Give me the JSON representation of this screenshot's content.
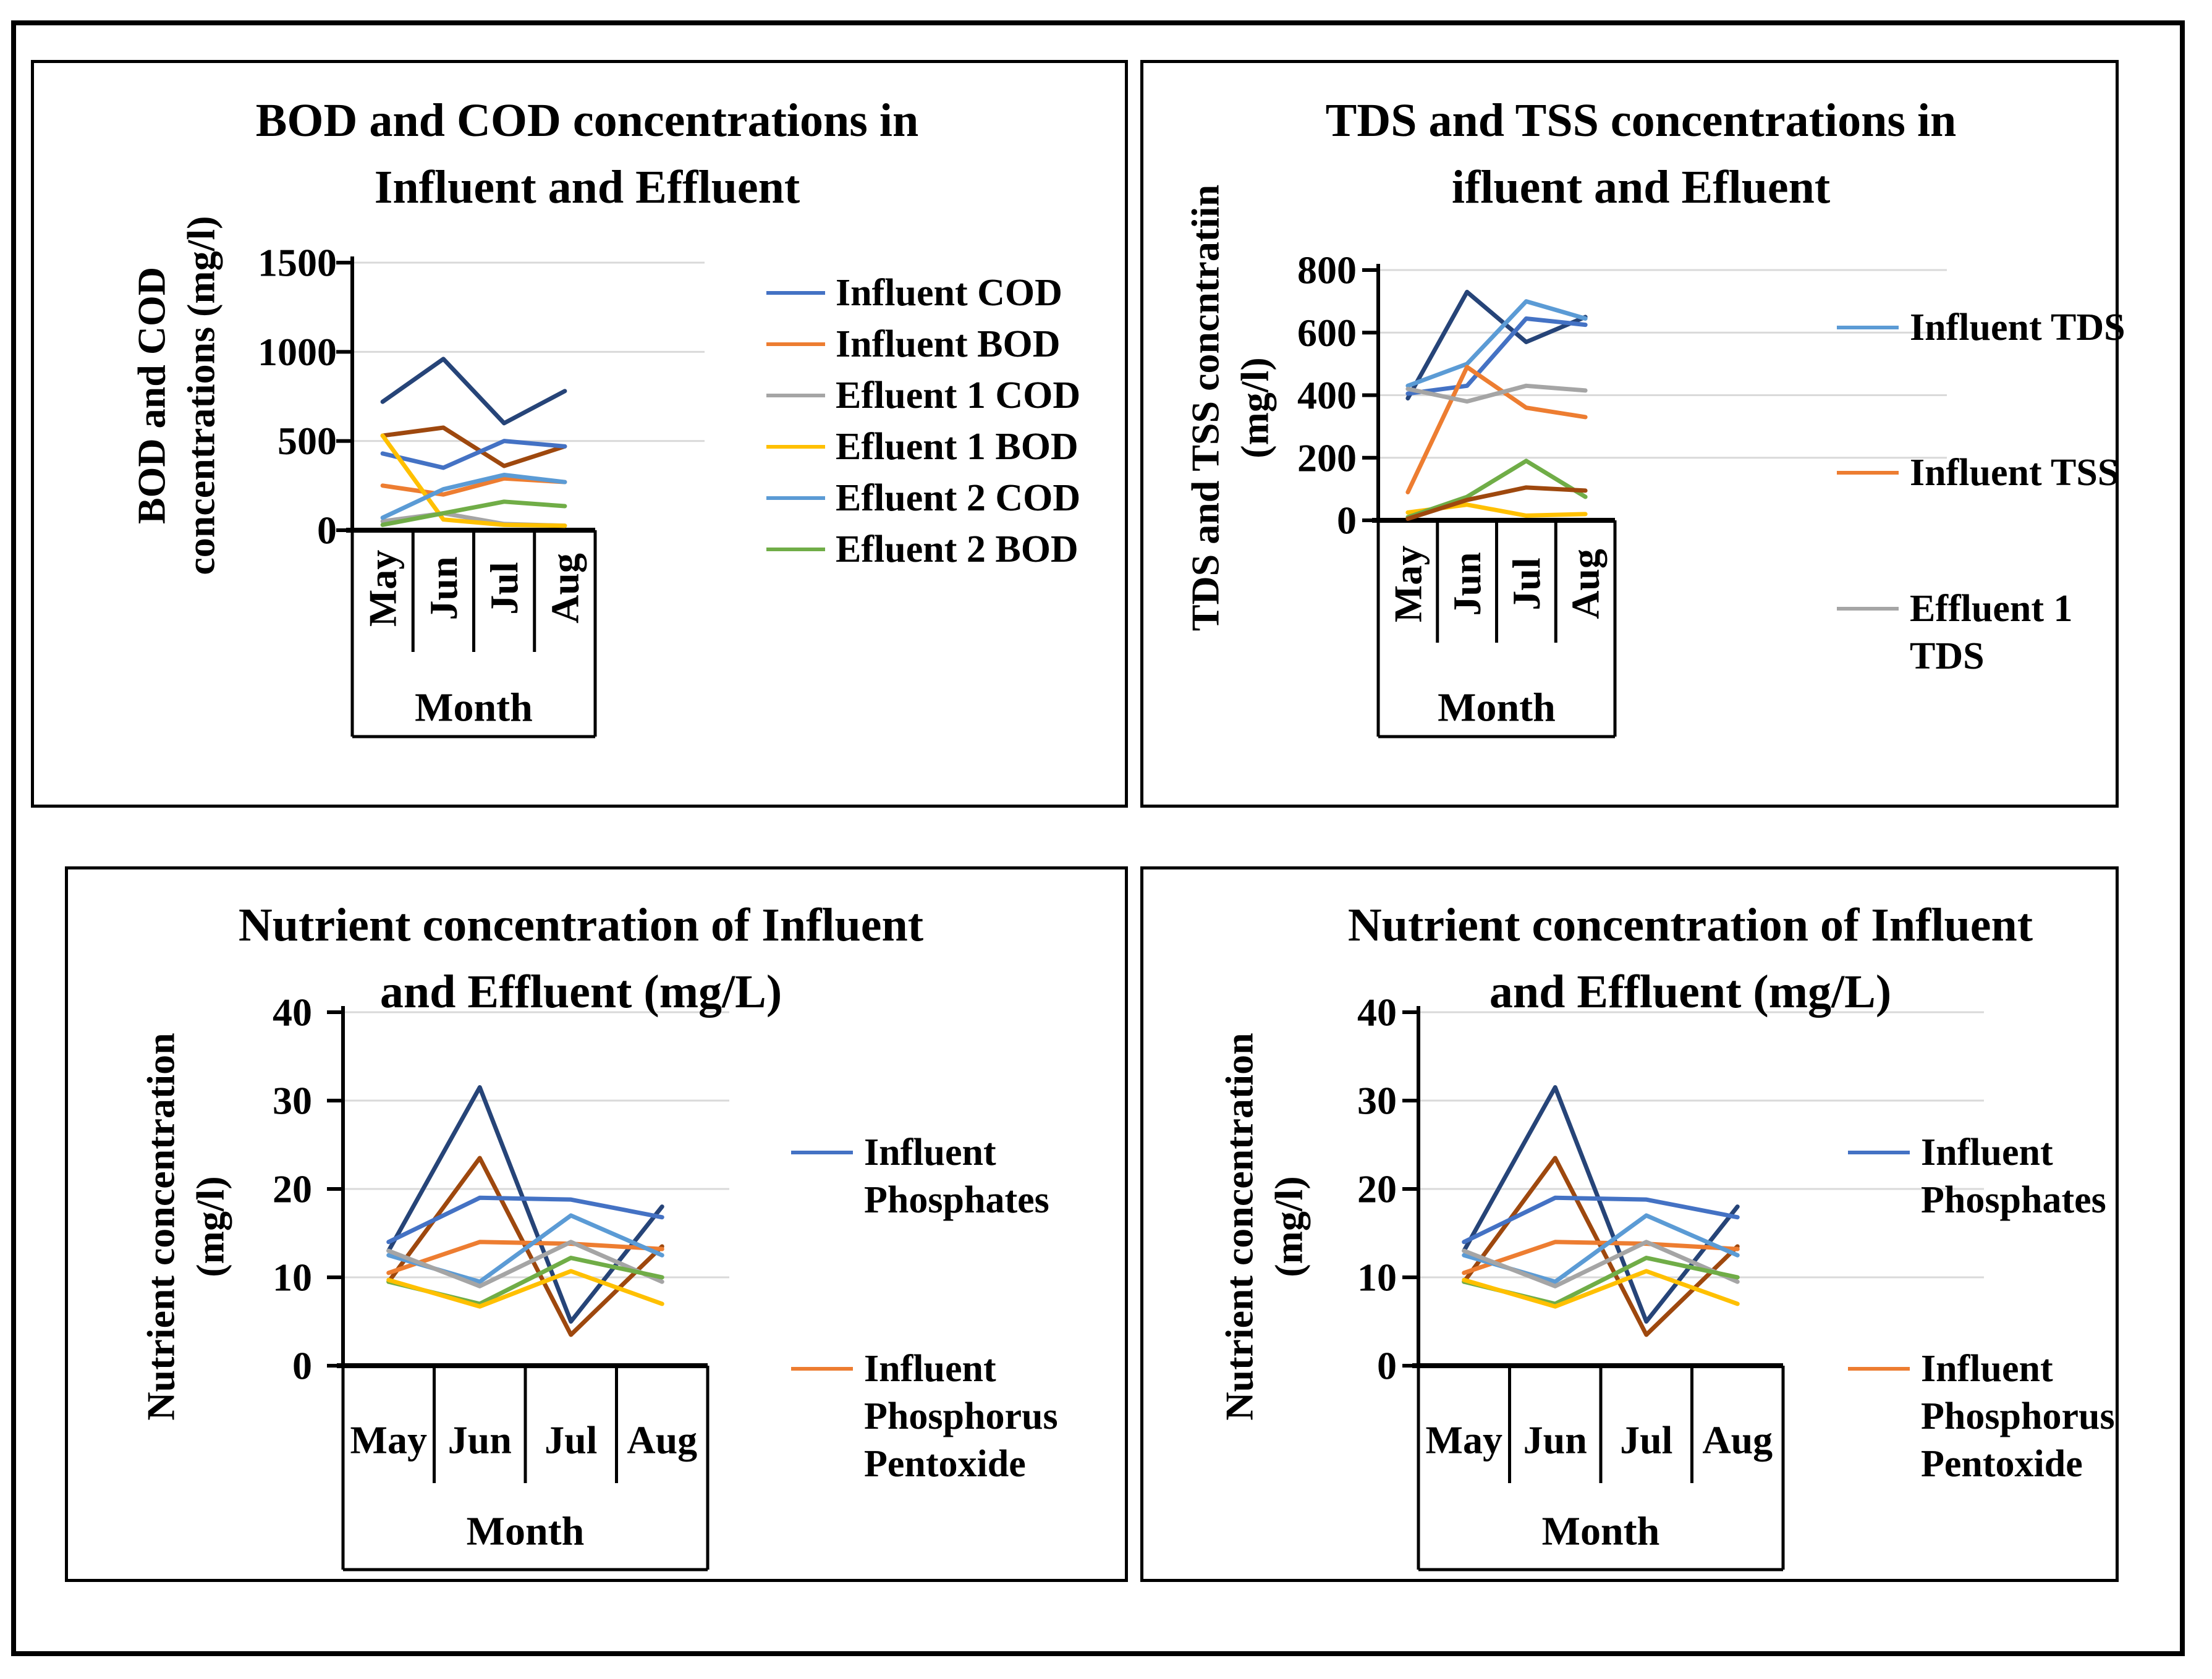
{
  "figure": {
    "background": "#ffffff",
    "border_color": "#000000",
    "gridline_color": "#D9D9D9"
  },
  "chart_data": [
    {
      "id": "bod-cod",
      "type": "line",
      "title_lines": [
        "BOD and COD concentrations in",
        "Influent and Effluent"
      ],
      "title": "BOD and COD concentrations in Influent and Effluent",
      "ylabel_lines": [
        "BOD and COD",
        "concentrations (mg/l)"
      ],
      "ylabel": "BOD and COD concentrations (mg/l)",
      "xlabel": "Month",
      "categories": [
        "May",
        "Jun",
        "Jul",
        "Aug"
      ],
      "ylim": [
        0,
        1500
      ],
      "yticks": [
        0,
        500,
        1000,
        1500
      ],
      "grid": true,
      "x_labels_rotated": true,
      "legend_position": "right",
      "legend": [
        {
          "label": "Influent COD",
          "lines": [
            "Influent COD"
          ],
          "color": "#4472C4"
        },
        {
          "label": "Influent BOD",
          "lines": [
            "Influent BOD"
          ],
          "color": "#ED7D31"
        },
        {
          "label": "Efluent 1 COD",
          "lines": [
            "Efluent 1 COD"
          ],
          "color": "#A5A5A5"
        },
        {
          "label": "Efluent 1 BOD",
          "lines": [
            "Efluent 1 BOD"
          ],
          "color": "#FFC000"
        },
        {
          "label": "Efluent 2 COD",
          "lines": [
            "Efluent 2 COD"
          ],
          "color": "#5B9BD5"
        },
        {
          "label": "Efluent 2 BOD",
          "lines": [
            "Efluent 2 BOD"
          ],
          "color": "#70AD47"
        }
      ],
      "series": [
        {
          "name": "unlabeled series (dark blue)",
          "color": "#264478",
          "in_legend": false,
          "values": [
            720,
            960,
            600,
            780
          ]
        },
        {
          "name": "unlabeled series (dark brown)",
          "color": "#9E480E",
          "in_legend": false,
          "values": [
            530,
            575,
            360,
            470
          ]
        },
        {
          "name": "Influent COD",
          "color": "#4472C4",
          "in_legend": true,
          "values": [
            430,
            350,
            500,
            470
          ]
        },
        {
          "name": "Influent BOD",
          "color": "#ED7D31",
          "in_legend": true,
          "values": [
            250,
            200,
            290,
            270
          ]
        },
        {
          "name": "Efluent 1 COD",
          "color": "#A5A5A5",
          "in_legend": true,
          "values": [
            50,
            95,
            35,
            25
          ]
        },
        {
          "name": "Efluent 1 BOD",
          "color": "#FFC000",
          "in_legend": true,
          "values": [
            530,
            60,
            30,
            25
          ]
        },
        {
          "name": "Efluent 2 COD",
          "color": "#5B9BD5",
          "in_legend": true,
          "values": [
            70,
            230,
            310,
            270
          ]
        },
        {
          "name": "Efluent 2 BOD",
          "color": "#70AD47",
          "in_legend": true,
          "values": [
            30,
            95,
            160,
            135
          ]
        }
      ]
    },
    {
      "id": "tds-tss",
      "type": "line",
      "title_lines": [
        "TDS and TSS concentrations in",
        "ifluent and Efluent"
      ],
      "title": "TDS and TSS concentrations in ifluent and Efluent",
      "ylabel_lines": [
        "TDS and TSS concntratiin",
        "(mg/l)"
      ],
      "ylabel": "TDS and TSS concntratiin (mg/l)",
      "xlabel": "Month",
      "categories": [
        "May",
        "Jun",
        "Jul",
        "Aug"
      ],
      "ylim": [
        0,
        800
      ],
      "yticks": [
        0,
        200,
        400,
        600,
        800
      ],
      "grid": true,
      "x_labels_rotated": true,
      "legend_position": "right",
      "legend": [
        {
          "label": "Influent TDS",
          "lines": [
            "Influent TDS"
          ],
          "color": "#5B9BD5"
        },
        {
          "label": "Influent TSS",
          "lines": [
            "Influent TSS"
          ],
          "color": "#ED7D31"
        },
        {
          "label": "Effluent 1 TDS",
          "lines": [
            "Effluent 1",
            "TDS"
          ],
          "color": "#A5A5A5"
        }
      ],
      "series": [
        {
          "name": "unlabeled series (dark blue)",
          "color": "#264478",
          "in_legend": false,
          "values": [
            390,
            730,
            570,
            650
          ]
        },
        {
          "name": "unlabeled series (medium blue)",
          "color": "#4472C4",
          "in_legend": false,
          "values": [
            405,
            430,
            645,
            625
          ]
        },
        {
          "name": "Influent TDS",
          "color": "#5B9BD5",
          "in_legend": true,
          "values": [
            430,
            500,
            700,
            645
          ]
        },
        {
          "name": "Influent TSS",
          "color": "#ED7D31",
          "in_legend": true,
          "values": [
            90,
            490,
            360,
            330
          ]
        },
        {
          "name": "Effluent 1 TDS",
          "color": "#A5A5A5",
          "in_legend": true,
          "values": [
            420,
            380,
            430,
            415
          ]
        },
        {
          "name": "unlabeled series (yellow)",
          "color": "#FFC000",
          "in_legend": false,
          "values": [
            25,
            50,
            15,
            20
          ]
        },
        {
          "name": "unlabeled series (green)",
          "color": "#70AD47",
          "in_legend": false,
          "values": [
            10,
            75,
            190,
            75
          ]
        },
        {
          "name": "unlabeled series (dark brown)",
          "color": "#9E480E",
          "in_legend": false,
          "values": [
            5,
            65,
            105,
            95
          ]
        }
      ]
    },
    {
      "id": "nutrient-left",
      "type": "line",
      "title_lines": [
        "Nutrient concentration of Influent",
        "and Effluent (mg/L)"
      ],
      "title": "Nutrient concentration of Influent and Effluent (mg/L)",
      "ylabel_lines": [
        "Nutrient concentration",
        "(mg/l)"
      ],
      "ylabel": "Nutrient concentration (mg/l)",
      "xlabel": "Month",
      "categories": [
        "May",
        "Jun",
        "Jul",
        "Aug"
      ],
      "ylim": [
        0,
        40
      ],
      "yticks": [
        0,
        10,
        20,
        30,
        40
      ],
      "grid": true,
      "x_labels_rotated": false,
      "legend_position": "right",
      "legend": [
        {
          "label": "Influent Phosphates",
          "lines": [
            "Influent",
            "Phosphates"
          ],
          "color": "#4472C4"
        },
        {
          "label": "Influent Phosphorus Pentoxide",
          "lines": [
            "Influent",
            "Phosphorus",
            "Pentoxide"
          ],
          "color": "#ED7D31"
        }
      ],
      "series": [
        {
          "name": "unlabeled series (dark blue)",
          "color": "#264478",
          "in_legend": false,
          "values": [
            13,
            31.5,
            5,
            18
          ]
        },
        {
          "name": "unlabeled series (dark brown)",
          "color": "#9E480E",
          "in_legend": false,
          "values": [
            9.5,
            23.5,
            3.5,
            13.5
          ]
        },
        {
          "name": "Influent Phosphates",
          "color": "#4472C4",
          "in_legend": true,
          "values": [
            14,
            19,
            18.8,
            16.8
          ]
        },
        {
          "name": "Influent Phosphorus Pentoxide",
          "color": "#ED7D31",
          "in_legend": true,
          "values": [
            10.5,
            14,
            13.8,
            13.2
          ]
        },
        {
          "name": "unlabeled series (light blue)",
          "color": "#5B9BD5",
          "in_legend": false,
          "values": [
            12.5,
            9.5,
            17,
            12.5
          ]
        },
        {
          "name": "unlabeled series (gray)",
          "color": "#A5A5A5",
          "in_legend": false,
          "values": [
            13,
            9,
            14,
            9.5
          ]
        },
        {
          "name": "unlabeled series (green)",
          "color": "#70AD47",
          "in_legend": false,
          "values": [
            9.5,
            7,
            12.2,
            10
          ]
        },
        {
          "name": "unlabeled series (yellow)",
          "color": "#FFC000",
          "in_legend": false,
          "values": [
            9.7,
            6.7,
            10.7,
            7
          ]
        }
      ]
    },
    {
      "id": "nutrient-right",
      "type": "line",
      "title_lines": [
        "Nutrient concentration of Influent",
        "and Effluent (mg/L)"
      ],
      "title": "Nutrient concentration of Influent and Effluent (mg/L)",
      "ylabel_lines": [
        "Nutrient concentration",
        "(mg/l)"
      ],
      "ylabel": "Nutrient concentration (mg/l)",
      "xlabel": "Month",
      "categories": [
        "May",
        "Jun",
        "Jul",
        "Aug"
      ],
      "ylim": [
        0,
        40
      ],
      "yticks": [
        0,
        10,
        20,
        30,
        40
      ],
      "grid": true,
      "x_labels_rotated": false,
      "legend_position": "right",
      "legend": [
        {
          "label": "Influent Phosphates",
          "lines": [
            "Influent",
            "Phosphates"
          ],
          "color": "#4472C4"
        },
        {
          "label": "Influent Phosphorus Pentoxide",
          "lines": [
            "Influent",
            "Phosphorus",
            "Pentoxide"
          ],
          "color": "#ED7D31"
        }
      ],
      "series": [
        {
          "name": "unlabeled series (dark blue)",
          "color": "#264478",
          "in_legend": false,
          "values": [
            13,
            31.5,
            5,
            18
          ]
        },
        {
          "name": "unlabeled series (dark brown)",
          "color": "#9E480E",
          "in_legend": false,
          "values": [
            9.5,
            23.5,
            3.5,
            13.5
          ]
        },
        {
          "name": "Influent Phosphates",
          "color": "#4472C4",
          "in_legend": true,
          "values": [
            14,
            19,
            18.8,
            16.8
          ]
        },
        {
          "name": "Influent Phosphorus Pentoxide",
          "color": "#ED7D31",
          "in_legend": true,
          "values": [
            10.5,
            14,
            13.8,
            13.2
          ]
        },
        {
          "name": "unlabeled series (light blue)",
          "color": "#5B9BD5",
          "in_legend": false,
          "values": [
            12.5,
            9.5,
            17,
            12.5
          ]
        },
        {
          "name": "unlabeled series (gray)",
          "color": "#A5A5A5",
          "in_legend": false,
          "values": [
            13,
            9,
            14,
            9.5
          ]
        },
        {
          "name": "unlabeled series (green)",
          "color": "#70AD47",
          "in_legend": false,
          "values": [
            9.5,
            7,
            12.2,
            10
          ]
        },
        {
          "name": "unlabeled series (yellow)",
          "color": "#FFC000",
          "in_legend": false,
          "values": [
            9.7,
            6.7,
            10.7,
            7
          ]
        }
      ]
    }
  ]
}
